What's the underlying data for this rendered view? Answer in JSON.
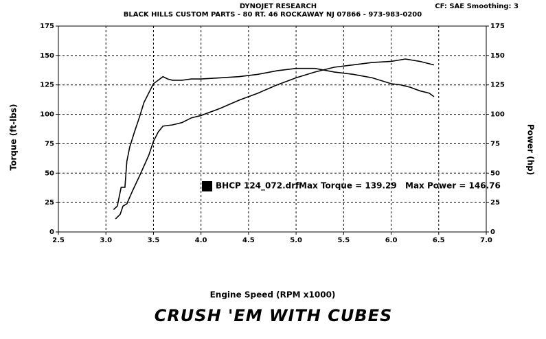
{
  "chart_data": {
    "type": "line",
    "title": "DYNOJET RESEARCH",
    "subtitle": "BLACK HILLS CUSTOM PARTS - 80 RT. 46   ROCKAWAY  NJ  07866 - 973-983-0200",
    "settings_text": "CF: SAE  Smoothing: 3",
    "x_label": "Engine Speed (RPM x1000)",
    "y_label": "Torque (ft-lbs)",
    "y2_label": "Power (hp)",
    "footer": "CRUSH 'EM WITH CUBES",
    "run_name": "BHCP 124_072.drf",
    "run_color": "#000000",
    "annotations": [
      "Max Torque = 139.29",
      "Max Power = 146.76"
    ],
    "xlim": [
      2.5,
      7.0
    ],
    "xticks": [
      2.5,
      {
        "value": 3,
        "label": "3.0"
      },
      3.5,
      {
        "value": 4,
        "label": "4.0"
      },
      4.5,
      {
        "value": 5,
        "label": "5.0"
      },
      5.5,
      {
        "value": 6,
        "label": "6.0"
      },
      6.5,
      {
        "value": 7,
        "label": "7.0"
      }
    ],
    "ylim": [
      0,
      175
    ],
    "yticks": [
      0,
      25,
      50,
      75,
      100,
      125,
      150,
      175
    ],
    "y2lim": [
      0,
      175
    ],
    "y2ticks": [
      0,
      25,
      50,
      75,
      100,
      125,
      150,
      175
    ],
    "grid": true,
    "series": [
      {
        "color": "#000000",
        "x": [
          3.08,
          3.12,
          3.16,
          3.2,
          3.22,
          3.25,
          3.3,
          3.35,
          3.4,
          3.45,
          3.5,
          3.55,
          3.6,
          3.65,
          3.7,
          3.8,
          3.9,
          4.0,
          4.2,
          4.4,
          4.6,
          4.8,
          5.0,
          5.2,
          5.4,
          5.6,
          5.8,
          6.0,
          6.1,
          6.2,
          6.3,
          6.4,
          6.45
        ],
        "values": [
          19,
          22,
          38,
          38,
          60,
          72,
          85,
          97,
          110,
          118,
          126,
          129,
          132,
          130,
          129,
          129,
          130,
          130,
          131,
          132,
          134,
          137,
          139,
          139,
          136,
          134,
          131,
          126,
          125,
          123,
          120,
          118,
          115
        ]
      },
      {
        "color": "#000000",
        "axis": "y2",
        "x": [
          3.1,
          3.15,
          3.18,
          3.22,
          3.28,
          3.35,
          3.4,
          3.45,
          3.5,
          3.55,
          3.6,
          3.7,
          3.8,
          3.9,
          4.0,
          4.2,
          4.4,
          4.6,
          4.8,
          5.0,
          5.2,
          5.4,
          5.6,
          5.8,
          6.0,
          6.15,
          6.3,
          6.45
        ],
        "values": [
          11,
          15,
          22,
          24,
          35,
          47,
          56,
          65,
          77,
          85,
          90,
          91,
          93,
          97,
          99,
          105,
          112,
          118,
          125,
          131,
          136,
          140,
          142,
          144,
          145,
          147,
          145,
          142
        ]
      }
    ]
  }
}
